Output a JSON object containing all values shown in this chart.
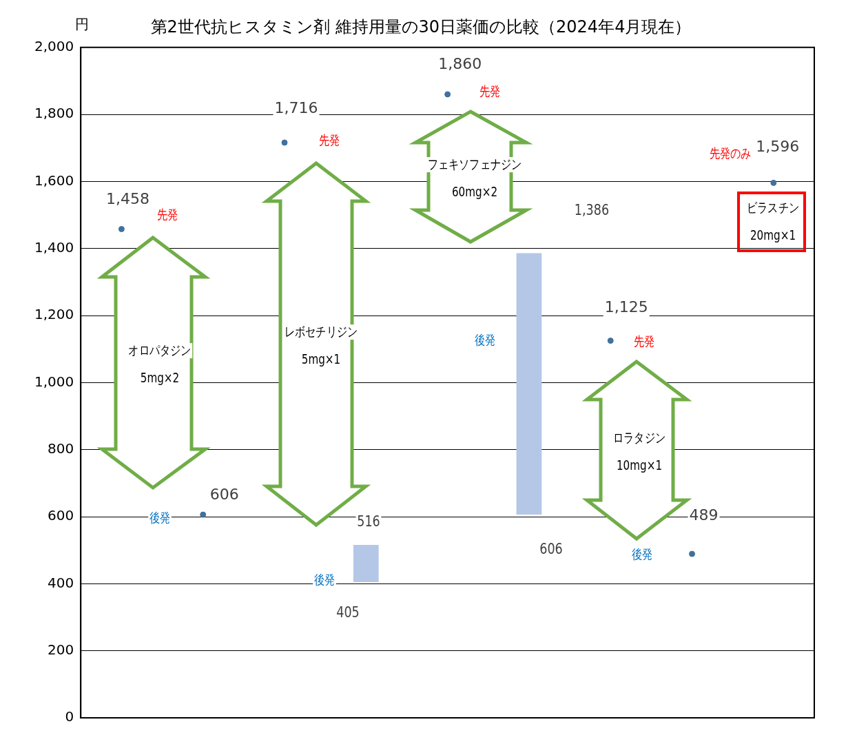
{
  "chart_data": {
    "type": "bar",
    "title": "第2世代抗ヒスタミン剤 維持用量の30日薬価の比較（2024年4月現在）",
    "ylabel": "円",
    "categories": [
      null,
      null,
      null,
      null,
      null,
      null,
      null,
      null,
      null
    ],
    "series": [
      {
        "color": "#b4c7e7",
        "values": [
          null,
          null,
          null,
          111,
          null,
          780,
          null,
          null,
          null
        ],
        "base": [
          null,
          null,
          null,
          405,
          null,
          606,
          null,
          null,
          null
        ]
      },
      {
        "type": "scatter",
        "color": "#41719c",
        "values": [
          1458,
          606,
          1716,
          null,
          1860,
          null,
          1125,
          489,
          1596
        ],
        "value_labels": [
          "1,458",
          "606",
          "1,716",
          null,
          "1,860",
          null,
          "1,125",
          "489",
          "1,596"
        ]
      }
    ],
    "ylim": [
      0,
      2000
    ],
    "yticks": [
      0,
      200,
      400,
      600,
      800,
      {
        "value": 1000,
        "label": "1,000"
      },
      {
        "value": 1200,
        "label": "1,200"
      },
      {
        "value": 1400,
        "label": "1,400"
      },
      {
        "value": 1600,
        "label": "1,600"
      },
      {
        "value": 1800,
        "label": "1,800"
      },
      {
        "value": 2000,
        "label": "2,000"
      }
    ],
    "grid": "y",
    "legend": false,
    "marker": "circle",
    "tick_labels": "y",
    "annotations": [
      "先発",
      "後発",
      "先発",
      "後発",
      "先発",
      "後発",
      "先発",
      "後発",
      "先発のみ",
      "オロパタジン",
      "5mg×2",
      "レボセチリジン",
      "5mg×1",
      "フェキソフェナジン",
      "60mg×2",
      "ロラタジン",
      "10mg×1",
      "ビラスチン",
      "20mg×1",
      "516",
      "405",
      "1,386",
      "606"
    ]
  }
}
